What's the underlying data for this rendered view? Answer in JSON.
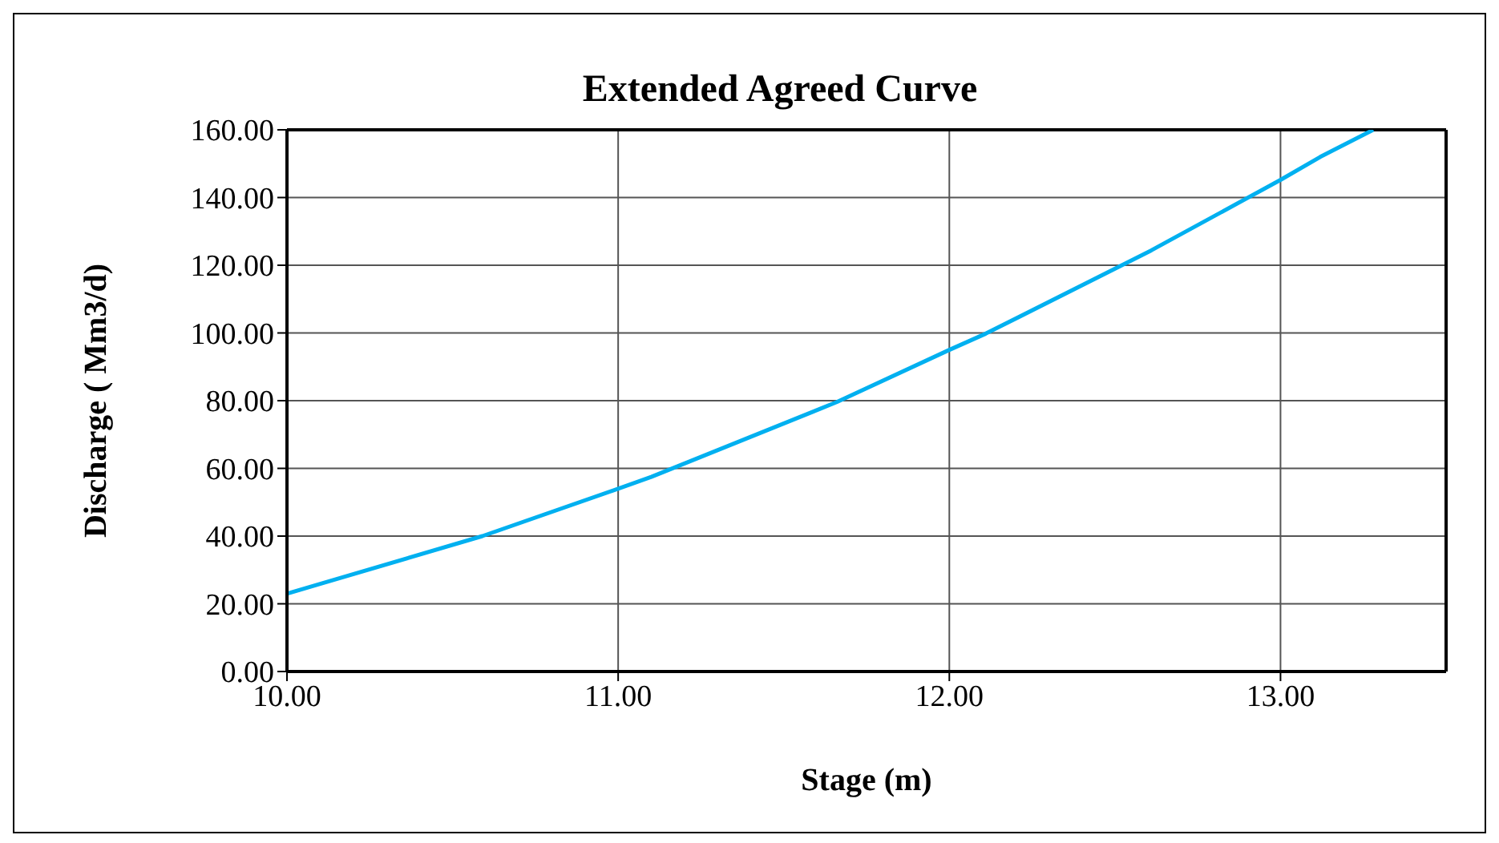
{
  "chart_data": {
    "type": "line",
    "title": "Extended Agreed Curve",
    "xlabel": "Stage (m)",
    "ylabel": "Discharge ( Mm3/d)",
    "series": [
      {
        "color": "#00b0f0",
        "x": [
          10.0,
          10.09,
          10.59,
          11.0,
          11.1,
          11.61,
          11.66,
          12.0,
          12.11,
          12.61,
          13.0,
          13.12,
          13.28
        ],
        "values": [
          23,
          25.6,
          40,
          54,
          57.5,
          77.6,
          79.6,
          95,
          99.8,
          124.4,
          145.2,
          152,
          160
        ]
      }
    ],
    "xlim": [
      10,
      13.5
    ],
    "xticks": [
      {
        "value": 10,
        "label": "10.00"
      },
      {
        "value": 11,
        "label": "11.00"
      },
      {
        "value": 12,
        "label": "12.00"
      },
      {
        "value": 13,
        "label": "13.00"
      }
    ],
    "ylim": [
      0,
      160
    ],
    "yticks": [
      {
        "value": 0,
        "label": "0.00"
      },
      {
        "value": 20,
        "label": "20.00"
      },
      {
        "value": 40,
        "label": "40.00"
      },
      {
        "value": 60,
        "label": "60.00"
      },
      {
        "value": 80,
        "label": "80.00"
      },
      {
        "value": 100,
        "label": "100.00"
      },
      {
        "value": 120,
        "label": "120.00"
      },
      {
        "value": 140,
        "label": "140.00"
      },
      {
        "value": 160,
        "label": "160.00"
      }
    ],
    "grid": true,
    "legend": false,
    "marker": "none",
    "line_style": "solid"
  }
}
